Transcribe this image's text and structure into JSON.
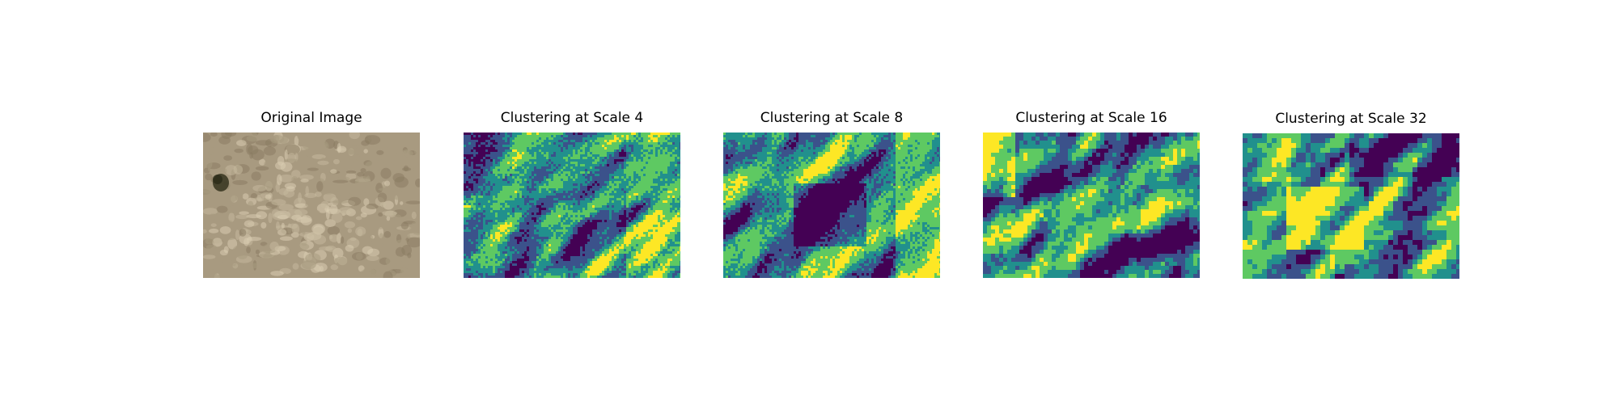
{
  "panels": [
    {
      "title": "Original Image",
      "image": "aerial photo of dry grass and shrub"
    },
    {
      "title": "Clustering at Scale 4",
      "image": "cluster map"
    },
    {
      "title": "Clustering at Scale 8",
      "image": "cluster map"
    },
    {
      "title": "Clustering at Scale 16",
      "image": "cluster map"
    },
    {
      "title": "Clustering at Scale 32",
      "image": "cluster map"
    }
  ],
  "colors": {
    "viridis": [
      "#440154",
      "#3b528b",
      "#21908d",
      "#5ec962",
      "#fde725"
    ],
    "photo": [
      "#a89a80",
      "#c4b89c",
      "#d8ccb0",
      "#8a7c62",
      "#3c3a24"
    ]
  }
}
